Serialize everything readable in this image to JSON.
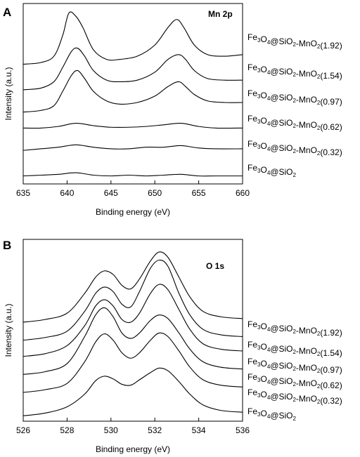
{
  "chart_data": [
    {
      "type": "line",
      "panel_label": "A",
      "title": "Mn 2p",
      "xlabel": "Binding energy (eV)",
      "ylabel": "Intensity (a.u.)",
      "xlim": [
        635,
        660
      ],
      "x_ticks": [
        635,
        640,
        645,
        650,
        655,
        660
      ],
      "y_ticks_shown": false,
      "grid": false,
      "series": [
        {
          "name": "Fe3O4@SiO2-MnO2(1.92)",
          "label_parts": [
            [
              "Fe",
              ""
            ],
            [
              "3",
              "sub"
            ],
            [
              "O",
              ""
            ],
            [
              "4",
              "sub"
            ],
            [
              "@SiO",
              ""
            ],
            [
              "2",
              "sub"
            ],
            [
              "-MnO",
              ""
            ],
            [
              "2",
              "sub"
            ],
            [
              "(1.92)",
              ""
            ]
          ],
          "x": [
            635,
            637,
            638.5,
            639.5,
            640.2,
            641,
            641.8,
            643,
            644.5,
            646,
            648,
            650,
            651.5,
            652.5,
            653.3,
            654.5,
            656,
            658,
            660
          ],
          "y": [
            8.0,
            8.1,
            8.5,
            9.8,
            11.2,
            11.0,
            10.3,
            8.9,
            8.3,
            8.3,
            8.5,
            9.2,
            10.3,
            10.8,
            10.3,
            9.2,
            8.6,
            8.5,
            8.6
          ]
        },
        {
          "name": "Fe3O4@SiO2-MnO2(1.54)",
          "label_parts": [
            [
              "Fe",
              ""
            ],
            [
              "3",
              "sub"
            ],
            [
              "O",
              ""
            ],
            [
              "4",
              "sub"
            ],
            [
              "@SiO",
              ""
            ],
            [
              "2",
              "sub"
            ],
            [
              "-MnO",
              ""
            ],
            [
              "2",
              "sub"
            ],
            [
              "(1.54)",
              ""
            ]
          ],
          "x": [
            635,
            637,
            638.5,
            639.5,
            640.5,
            641.2,
            642,
            643,
            644.5,
            646,
            648,
            650,
            651.5,
            652.7,
            653.5,
            654.5,
            656,
            658,
            660
          ],
          "y": [
            6.4,
            6.5,
            6.9,
            7.8,
            8.8,
            9.0,
            8.5,
            7.6,
            7.0,
            6.9,
            7.0,
            7.5,
            8.3,
            8.6,
            8.3,
            7.6,
            7.1,
            7.0,
            7.0
          ]
        },
        {
          "name": "Fe3O4@SiO2-MnO2(0.97)",
          "label_parts": [
            [
              "Fe",
              ""
            ],
            [
              "3",
              "sub"
            ],
            [
              "O",
              ""
            ],
            [
              "4",
              "sub"
            ],
            [
              "@SiO",
              ""
            ],
            [
              "2",
              "sub"
            ],
            [
              "-MnO",
              ""
            ],
            [
              "2",
              "sub"
            ],
            [
              "(0.97)",
              ""
            ]
          ],
          "x": [
            635,
            637,
            638.5,
            639.5,
            640.5,
            641.2,
            642,
            643,
            644.5,
            646,
            648,
            650,
            651.5,
            652.7,
            653.5,
            654.5,
            656,
            658,
            660
          ],
          "y": [
            5.0,
            5.1,
            5.4,
            6.3,
            7.3,
            7.6,
            7.1,
            6.3,
            5.7,
            5.5,
            5.6,
            6.0,
            6.6,
            6.9,
            6.6,
            6.1,
            5.7,
            5.6,
            5.6
          ]
        },
        {
          "name": "Fe3O4@SiO2-MnO2(0.62)",
          "label_parts": [
            [
              "Fe",
              ""
            ],
            [
              "3",
              "sub"
            ],
            [
              "O",
              ""
            ],
            [
              "4",
              "sub"
            ],
            [
              "@SiO",
              ""
            ],
            [
              "2",
              "sub"
            ],
            [
              "-MnO",
              ""
            ],
            [
              "2",
              "sub"
            ],
            [
              "(0.62)",
              ""
            ]
          ],
          "x": [
            635,
            637,
            639,
            641,
            643,
            645,
            647,
            649,
            651,
            653,
            655,
            657,
            660
          ],
          "y": [
            4.0,
            4.0,
            4.1,
            4.3,
            4.15,
            4.05,
            4.05,
            4.1,
            4.2,
            4.3,
            4.1,
            4.0,
            4.0
          ]
        },
        {
          "name": "Fe3O4@SiO2-MnO2(0.32)",
          "label_parts": [
            [
              "Fe",
              ""
            ],
            [
              "3",
              "sub"
            ],
            [
              "O",
              ""
            ],
            [
              "4",
              "sub"
            ],
            [
              "@SiO",
              ""
            ],
            [
              "2",
              "sub"
            ],
            [
              "-MnO",
              ""
            ],
            [
              "2",
              "sub"
            ],
            [
              "(0.32)",
              ""
            ]
          ],
          "x": [
            635,
            637,
            639,
            641,
            643,
            645,
            647,
            649,
            651,
            653,
            655,
            657,
            660
          ],
          "y": [
            2.6,
            2.7,
            2.8,
            2.95,
            2.8,
            2.7,
            2.7,
            2.8,
            2.8,
            2.9,
            2.75,
            2.7,
            2.7
          ]
        },
        {
          "name": "Fe3O4@SiO2",
          "label_parts": [
            [
              "Fe",
              ""
            ],
            [
              "3",
              "sub"
            ],
            [
              "O",
              ""
            ],
            [
              "4",
              "sub"
            ],
            [
              "@SiO",
              ""
            ],
            [
              "2",
              "sub"
            ]
          ],
          "x": [
            635,
            637,
            639,
            641,
            643,
            645,
            647,
            649,
            651,
            653,
            655,
            657,
            660
          ],
          "y": [
            1.0,
            1.05,
            1.1,
            1.2,
            1.05,
            1.0,
            1.05,
            1.0,
            1.05,
            1.1,
            1.0,
            1.0,
            1.0
          ]
        }
      ]
    },
    {
      "type": "line",
      "panel_label": "B",
      "title": "O 1s",
      "xlabel": "Binding energy (eV)",
      "ylabel": "Intensity (a.u.)",
      "xlim": [
        526,
        536
      ],
      "x_ticks": [
        526,
        528,
        530,
        532,
        534,
        536
      ],
      "y_ticks_shown": false,
      "grid": false,
      "series": [
        {
          "name": "Fe3O4@SiO2-MnO2(1.92)",
          "label_parts": [
            [
              "Fe",
              ""
            ],
            [
              "3",
              "sub"
            ],
            [
              "O",
              ""
            ],
            [
              "4",
              "sub"
            ],
            [
              "@SiO",
              ""
            ],
            [
              "2",
              "sub"
            ],
            [
              "-MnO",
              ""
            ],
            [
              "2",
              "sub"
            ],
            [
              "(1.92)",
              ""
            ]
          ],
          "x": [
            526,
            527,
            528,
            528.8,
            529.3,
            529.7,
            530.1,
            530.5,
            530.9,
            531.3,
            531.8,
            532.2,
            532.6,
            533.1,
            533.6,
            534.2,
            535,
            536
          ],
          "y": [
            5.2,
            5.35,
            5.7,
            6.8,
            7.7,
            8.05,
            7.85,
            7.25,
            7.05,
            7.6,
            8.6,
            9.1,
            8.8,
            7.7,
            6.6,
            5.8,
            5.5,
            5.4
          ]
        },
        {
          "name": "Fe3O4@SiO2-MnO2(1.54)",
          "label_parts": [
            [
              "Fe",
              ""
            ],
            [
              "3",
              "sub"
            ],
            [
              "O",
              ""
            ],
            [
              "4",
              "sub"
            ],
            [
              "@SiO",
              ""
            ],
            [
              "2",
              "sub"
            ],
            [
              "-MnO",
              ""
            ],
            [
              "2",
              "sub"
            ],
            [
              "(1.54)",
              ""
            ]
          ],
          "x": [
            526,
            527,
            528,
            528.8,
            529.3,
            529.7,
            530.1,
            530.5,
            530.9,
            531.3,
            531.8,
            532.2,
            532.6,
            533.1,
            533.6,
            534.2,
            535,
            536
          ],
          "y": [
            4.2,
            4.35,
            4.7,
            5.8,
            6.8,
            7.15,
            6.9,
            6.2,
            6.05,
            6.9,
            8.2,
            8.65,
            8.3,
            6.8,
            5.6,
            4.8,
            4.5,
            4.4
          ]
        },
        {
          "name": "Fe3O4@SiO2-MnO2(0.97)",
          "label_parts": [
            [
              "Fe",
              ""
            ],
            [
              "3",
              "sub"
            ],
            [
              "O",
              ""
            ],
            [
              "4",
              "sub"
            ],
            [
              "@SiO",
              ""
            ],
            [
              "2",
              "sub"
            ],
            [
              "-MnO",
              ""
            ],
            [
              "2",
              "sub"
            ],
            [
              "(0.97)",
              ""
            ]
          ],
          "x": [
            526,
            527,
            528,
            528.8,
            529.3,
            529.7,
            530.1,
            530.5,
            530.9,
            531.3,
            531.8,
            532.2,
            532.6,
            533.1,
            533.6,
            534.2,
            535,
            536
          ],
          "y": [
            3.3,
            3.45,
            3.9,
            5.0,
            6.1,
            6.45,
            6.1,
            5.35,
            5.2,
            5.7,
            6.8,
            7.3,
            7.0,
            5.9,
            4.8,
            4.0,
            3.7,
            3.6
          ]
        },
        {
          "name": "Fe3O4@SiO2-MnO2(0.62)",
          "label_parts": [
            [
              "Fe",
              ""
            ],
            [
              "3",
              "sub"
            ],
            [
              "O",
              ""
            ],
            [
              "4",
              "sub"
            ],
            [
              "@SiO",
              ""
            ],
            [
              "2",
              "sub"
            ],
            [
              "-MnO",
              ""
            ],
            [
              "2",
              "sub"
            ],
            [
              "(0.62)",
              ""
            ]
          ],
          "x": [
            526,
            527,
            528,
            528.8,
            529.3,
            529.7,
            530.1,
            530.5,
            530.9,
            531.3,
            531.8,
            532.2,
            532.6,
            533.1,
            533.6,
            534.2,
            535,
            536
          ],
          "y": [
            2.3,
            2.45,
            2.9,
            4.4,
            5.6,
            6.0,
            5.5,
            4.6,
            4.3,
            4.6,
            5.3,
            5.6,
            5.4,
            4.6,
            3.7,
            3.0,
            2.7,
            2.6
          ]
        },
        {
          "name": "Fe3O4@SiO2-MnO2(0.32)",
          "label_parts": [
            [
              "Fe",
              ""
            ],
            [
              "3",
              "sub"
            ],
            [
              "O",
              ""
            ],
            [
              "4",
              "sub"
            ],
            [
              "@SiO",
              ""
            ],
            [
              "2",
              "sub"
            ],
            [
              "-MnO",
              ""
            ],
            [
              "2",
              "sub"
            ],
            [
              "(0.32)",
              ""
            ]
          ],
          "x": [
            526,
            527,
            528,
            528.8,
            529.3,
            529.7,
            530.1,
            530.5,
            530.9,
            531.3,
            531.8,
            532.2,
            532.6,
            533.1,
            533.6,
            534.2,
            535,
            536
          ],
          "y": [
            1.3,
            1.45,
            1.8,
            3.0,
            4.1,
            4.55,
            4.2,
            3.5,
            3.2,
            3.5,
            4.2,
            4.6,
            4.4,
            3.6,
            2.7,
            2.0,
            1.7,
            1.6
          ]
        },
        {
          "name": "Fe3O4@SiO2",
          "label_parts": [
            [
              "Fe",
              ""
            ],
            [
              "3",
              "sub"
            ],
            [
              "O",
              ""
            ],
            [
              "4",
              "sub"
            ],
            [
              "@SiO",
              ""
            ],
            [
              "2",
              "sub"
            ]
          ],
          "x": [
            526,
            527,
            528,
            528.8,
            529.3,
            529.7,
            530.1,
            530.5,
            530.9,
            531.3,
            531.8,
            532.2,
            532.6,
            533.1,
            533.6,
            534.2,
            535,
            536
          ],
          "y": [
            0.0,
            0.15,
            0.5,
            1.2,
            1.95,
            2.2,
            2.05,
            1.75,
            1.7,
            2.0,
            2.4,
            2.65,
            2.5,
            1.9,
            1.2,
            0.6,
            0.3,
            0.2
          ]
        }
      ]
    }
  ]
}
